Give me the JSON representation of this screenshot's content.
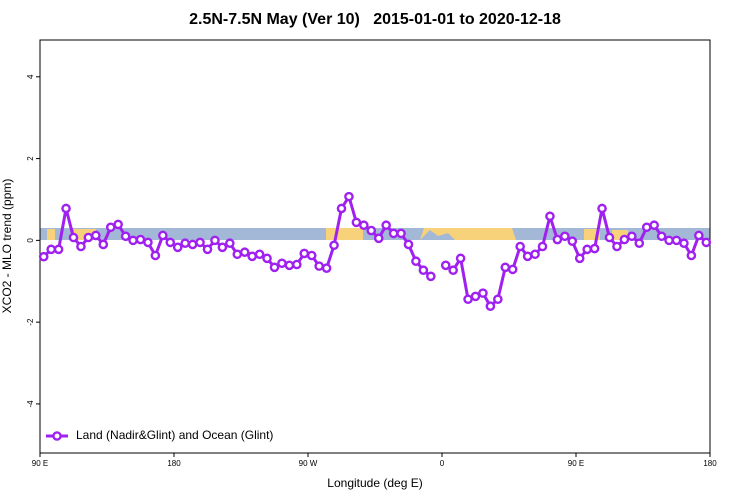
{
  "chart_data": {
    "type": "line",
    "title": "2.5N-7.5N May (Ver 10)   2015-01-01 to 2020-12-18",
    "xlabel": "Longitude (deg E)",
    "ylabel": "XCO2 - MLO trend (ppm)",
    "xlim": [
      90,
      540
    ],
    "xticks": [
      {
        "value": 90,
        "label": "90 E"
      },
      180,
      {
        "value": 270,
        "label": "90 W"
      },
      {
        "value": 360,
        "label": "0"
      },
      {
        "value": 450,
        "label": "90 E"
      },
      {
        "value": 540,
        "label": "180"
      }
    ],
    "ylim": [
      -5.2,
      4.9
    ],
    "yticks": [
      -4,
      -2,
      0,
      2,
      4
    ],
    "grid": false,
    "legend": "bottom left",
    "x": [
      92.5,
      97.5,
      102.5,
      107.5,
      112.5,
      117.5,
      122.5,
      127.5,
      132.5,
      137.5,
      142.5,
      147.5,
      152.5,
      157.5,
      162.5,
      167.5,
      172.5,
      177.5,
      182.5,
      187.5,
      192.5,
      197.5,
      202.5,
      207.5,
      212.5,
      217.5,
      222.5,
      227.5,
      232.5,
      237.5,
      242.5,
      247.5,
      252.5,
      257.5,
      262.5,
      267.5,
      272.5,
      277.5,
      282.5,
      287.5,
      292.5,
      297.5,
      302.5,
      307.5,
      312.5,
      317.5,
      322.5,
      327.5,
      332.5,
      337.5,
      342.5,
      347.5,
      352.5,
      357.5,
      362.5,
      367.5,
      372.5,
      377.5,
      382.5,
      387.5,
      392.5,
      397.5,
      402.5,
      407.5,
      412.5,
      417.5,
      422.5,
      427.5,
      432.5,
      437.5,
      442.5,
      447.5,
      452.5,
      457.5,
      462.5,
      467.5,
      472.5,
      477.5,
      482.5,
      487.5,
      492.5,
      497.5,
      502.5,
      507.5,
      512.5,
      517.5,
      522.5,
      527.5,
      532.5,
      537.5
    ],
    "series": [
      {
        "name": "Land (Nadir&Glint) and Ocean (Glint)",
        "color": "#a020f0",
        "values": [
          -0.4,
          -0.22,
          -0.22,
          0.78,
          0.07,
          -0.15,
          0.07,
          0.12,
          -0.1,
          0.32,
          0.39,
          0.1,
          0,
          0.02,
          -0.05,
          -0.37,
          0.12,
          -0.05,
          -0.17,
          -0.07,
          -0.1,
          -0.05,
          -0.22,
          0,
          -0.17,
          -0.07,
          -0.34,
          -0.29,
          -0.39,
          -0.34,
          -0.44,
          -0.66,
          -0.56,
          -0.61,
          -0.59,
          -0.32,
          -0.37,
          -0.63,
          -0.68,
          -0.12,
          0.78,
          1.07,
          0.44,
          0.37,
          0.24,
          0.05,
          0.37,
          0.17,
          0.17,
          -0.1,
          -0.51,
          -0.73,
          -0.88,
          null,
          -0.61,
          -0.73,
          -0.44,
          -1.44,
          -1.37,
          -1.29,
          -1.61,
          -1.44,
          -0.66,
          -0.71,
          -0.15,
          -0.39,
          -0.34,
          -0.15,
          0.59,
          0.02,
          0.1,
          -0.02,
          -0.44,
          -0.22,
          -0.2,
          0.78,
          0.07,
          -0.15,
          0.02,
          0.1,
          -0.07,
          0.32,
          0.37,
          0.1,
          0,
          0,
          -0.07,
          -0.37,
          0.12,
          -0.05
        ]
      }
    ]
  }
}
